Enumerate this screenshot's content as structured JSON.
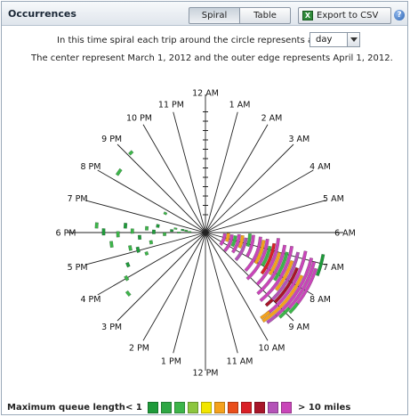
{
  "panel": {
    "title": "Occurrences",
    "view_tabs": [
      "Spiral",
      "Table"
    ],
    "active_tab": "Spiral",
    "export_label": "Export to CSV",
    "export_icon": "excel-icon",
    "help_icon": "help-icon"
  },
  "description": {
    "line1": "In this time spiral each trip around the circle represents a",
    "period_value": "day",
    "line2": "The center represent March 1, 2012 and the outer edge represents April 1, 2012."
  },
  "chart_data": {
    "type": "spiral",
    "hour_labels": [
      "12 AM",
      "1 AM",
      "2 AM",
      "3 AM",
      "4 AM",
      "5 AM",
      "6 AM",
      "7 AM",
      "8 AM",
      "9 AM",
      "10 AM",
      "11 AM",
      "12 PM",
      "1 PM",
      "2 PM",
      "3 PM",
      "4 PM",
      "5 PM",
      "6 PM",
      "7 PM",
      "8 PM",
      "9 PM",
      "10 PM",
      "11 PM"
    ],
    "day_range": [
      1,
      31
    ],
    "colors": {
      "green_dark": "#1e9a3a",
      "green": "#3db54a",
      "yellow": "#f2e600",
      "orange": "#f5a21d",
      "red": "#d92027",
      "dark_red": "#a8162a",
      "purple": "#b453b8",
      "magenta": "#c946b9"
    },
    "occurrences": [
      {
        "day": 28,
        "hour_start": 21.05,
        "hour_end": 21.2,
        "level": 1
      },
      {
        "day": 27,
        "hour_start": 20.2,
        "hour_end": 20.45,
        "level": 1
      },
      {
        "day": 10,
        "hour_start": 19.6,
        "hour_end": 19.8,
        "level": 1
      },
      {
        "day": 4,
        "hour_start": 18.3,
        "hour_end": 18.55,
        "level": 0
      },
      {
        "day": 2,
        "hour_start": 18.0,
        "hour_end": 18.3,
        "level": 1
      },
      {
        "day": 5,
        "hour_start": 17.9,
        "hour_end": 18.1,
        "level": 1
      },
      {
        "day": 7,
        "hour_start": 18.1,
        "hour_end": 18.35,
        "level": 0
      },
      {
        "day": 9,
        "hour_start": 17.7,
        "hour_end": 18.0,
        "level": 1
      },
      {
        "day": 12,
        "hour_start": 17.9,
        "hour_end": 18.2,
        "level": 0
      },
      {
        "day": 14,
        "hour_start": 18.15,
        "hour_end": 18.4,
        "level": 1
      },
      {
        "day": 16,
        "hour_start": 17.6,
        "hour_end": 17.85,
        "level": 0
      },
      {
        "day": 18,
        "hour_start": 17.95,
        "hour_end": 18.2,
        "level": 1
      },
      {
        "day": 20,
        "hour_start": 18.2,
        "hour_end": 18.45,
        "level": 0
      },
      {
        "day": 22,
        "hour_start": 17.8,
        "hour_end": 18.05,
        "level": 1
      },
      {
        "day": 24,
        "hour_start": 17.4,
        "hour_end": 17.65,
        "level": 1
      },
      {
        "day": 26,
        "hour_start": 17.9,
        "hour_end": 18.15,
        "level": 0
      },
      {
        "day": 28,
        "hour_start": 18.15,
        "hour_end": 18.35,
        "level": 1
      },
      {
        "day": 13,
        "hour_start": 17.2,
        "hour_end": 17.45,
        "level": 1
      },
      {
        "day": 17,
        "hour_start": 16.9,
        "hour_end": 17.2,
        "level": 0
      },
      {
        "day": 19,
        "hour_start": 17.1,
        "hour_end": 17.35,
        "level": 1
      },
      {
        "day": 15,
        "hour_start": 16.6,
        "hour_end": 16.8,
        "level": 1
      },
      {
        "day": 21,
        "hour_start": 16.4,
        "hour_end": 16.6,
        "level": 0
      },
      {
        "day": 23,
        "hour_start": 15.9,
        "hour_end": 16.1,
        "level": 1
      },
      {
        "day": 25,
        "hour_start": 15.35,
        "hour_end": 15.55,
        "level": 1
      },
      {
        "day": 3,
        "hour_start": 18.2,
        "hour_end": 18.5,
        "level": 1
      },
      {
        "day": 6,
        "hour_start": 18.4,
        "hour_end": 18.6,
        "level": 1
      },
      {
        "day": 11,
        "hour_start": 18.4,
        "hour_end": 18.65,
        "level": 0
      },
      {
        "day": 3,
        "hour_start": 6.2,
        "hour_end": 8.6,
        "level": 7
      },
      {
        "day": 4,
        "hour_start": 6.1,
        "hour_end": 7.5,
        "level": 3
      },
      {
        "day": 5,
        "hour_start": 6.3,
        "hour_end": 8.9,
        "level": 7
      },
      {
        "day": 6,
        "hour_start": 6.4,
        "hour_end": 7.8,
        "level": 1
      },
      {
        "day": 7,
        "hour_start": 6.2,
        "hour_end": 8.4,
        "level": 7
      },
      {
        "day": 8,
        "hour_start": 6.3,
        "hour_end": 7.6,
        "level": 3
      },
      {
        "day": 9,
        "hour_start": 6.5,
        "hour_end": 8.8,
        "level": 6
      },
      {
        "day": 10,
        "hour_start": 6.1,
        "hour_end": 7.2,
        "level": 1
      },
      {
        "day": 11,
        "hour_start": 6.2,
        "hour_end": 8.0,
        "level": 7
      },
      {
        "day": 13,
        "hour_start": 6.3,
        "hour_end": 8.9,
        "level": 7
      },
      {
        "day": 14,
        "hour_start": 6.5,
        "hour_end": 8.1,
        "level": 3
      },
      {
        "day": 15,
        "hour_start": 6.4,
        "hour_end": 9.2,
        "level": 7
      },
      {
        "day": 16,
        "hour_start": 6.8,
        "hour_end": 8.0,
        "level": 1
      },
      {
        "day": 17,
        "hour_start": 6.6,
        "hour_end": 8.4,
        "level": 4
      },
      {
        "day": 18,
        "hour_start": 6.3,
        "hour_end": 9.0,
        "level": 7
      },
      {
        "day": 19,
        "hour_start": 7.0,
        "hour_end": 8.2,
        "level": 3
      },
      {
        "day": 20,
        "hour_start": 6.6,
        "hour_end": 9.3,
        "level": 7
      },
      {
        "day": 21,
        "hour_start": 6.9,
        "hour_end": 8.3,
        "level": 1
      },
      {
        "day": 22,
        "hour_start": 6.6,
        "hour_end": 9.4,
        "level": 7
      },
      {
        "day": 23,
        "hour_start": 7.2,
        "hour_end": 8.6,
        "level": 3
      },
      {
        "day": 24,
        "hour_start": 6.8,
        "hour_end": 9.3,
        "level": 6
      },
      {
        "day": 25,
        "hour_start": 7.4,
        "hour_end": 9.0,
        "level": 5
      },
      {
        "day": 26,
        "hour_start": 6.7,
        "hour_end": 9.5,
        "level": 7
      },
      {
        "day": 27,
        "hour_start": 7.6,
        "hour_end": 9.8,
        "level": 3
      },
      {
        "day": 28,
        "hour_start": 6.9,
        "hour_end": 9.3,
        "level": 7
      },
      {
        "day": 29,
        "hour_start": 7.0,
        "hour_end": 8.8,
        "level": 7
      },
      {
        "day": 30,
        "hour_start": 7.2,
        "hour_end": 8.5,
        "level": 7
      },
      {
        "day": 31,
        "hour_start": 6.7,
        "hour_end": 7.4,
        "level": 0
      },
      {
        "day": 24,
        "hour_start": 9.0,
        "hour_end": 9.35,
        "level": 5
      },
      {
        "day": 26,
        "hour_start": 9.4,
        "hour_end": 9.8,
        "level": 3
      },
      {
        "day": 29,
        "hour_start": 8.8,
        "hour_end": 9.25,
        "level": 1
      },
      {
        "day": 30,
        "hour_start": 8.5,
        "hour_end": 8.9,
        "level": 1
      },
      {
        "day": 28,
        "hour_start": 9.3,
        "hour_end": 9.7,
        "level": 6
      }
    ]
  },
  "legend": {
    "label": "Maximum queue length",
    "low_label": "< 1",
    "high_label": "> 10 miles",
    "swatch_colors": [
      "#1e9a3a",
      "#2ea744",
      "#3db54a",
      "#8cc63f",
      "#f2e600",
      "#f5a21d",
      "#e94e1b",
      "#d92027",
      "#a8162a",
      "#b453b8",
      "#c946b9"
    ]
  }
}
